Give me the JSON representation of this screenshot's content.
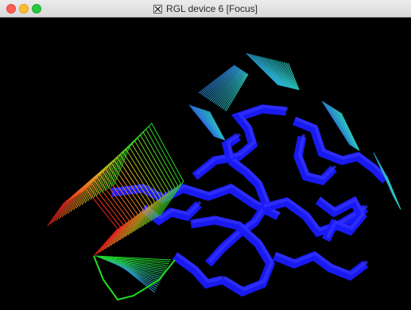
{
  "window": {
    "title": "RGL device 6 [Focus]",
    "icon": "x11-icon",
    "traffic_lights": [
      "close",
      "minimize",
      "zoom"
    ]
  },
  "viewport": {
    "background": "#000000",
    "content": "3D ribbon rendering of a protein backbone",
    "ribbon_colors": [
      "#1a1aff",
      "#2a7fd0",
      "#2bc7c0",
      "#22dd22",
      "#ff2020"
    ]
  },
  "colors": {
    "close": "#ff5f57",
    "minimize": "#febc2e",
    "zoom": "#28c840",
    "ribbon_main": "#1a1aff",
    "ribbon_cyan": "#2bc7c0",
    "ribbon_green": "#22dd22",
    "ribbon_red": "#ff2020"
  }
}
